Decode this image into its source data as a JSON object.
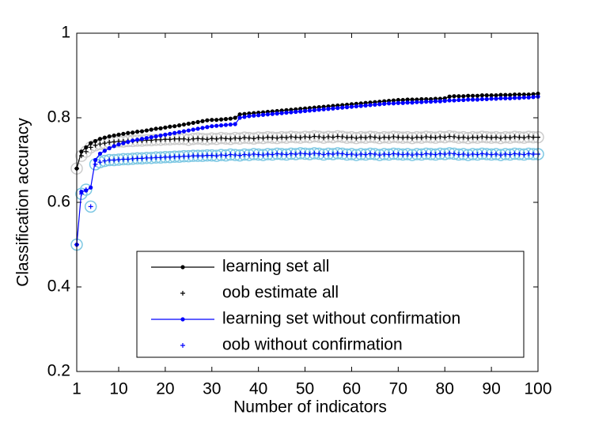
{
  "chart_data": {
    "type": "line",
    "x_label": "Number of indicators",
    "y_label": "Classification accuracy",
    "xlim": [
      1,
      100
    ],
    "xticks": [
      1,
      10,
      20,
      30,
      40,
      50,
      60,
      70,
      80,
      90,
      100
    ],
    "ylim": [
      0.2,
      1
    ],
    "yticks": [
      0.2,
      0.4,
      0.6,
      0.8,
      1
    ],
    "legend": "lower right",
    "x": [
      1,
      2,
      3,
      4,
      5,
      6,
      7,
      8,
      9,
      10,
      11,
      12,
      13,
      14,
      15,
      16,
      17,
      18,
      19,
      20,
      21,
      22,
      23,
      24,
      25,
      26,
      27,
      28,
      29,
      30,
      31,
      32,
      33,
      34,
      35,
      36,
      37,
      38,
      39,
      40,
      41,
      42,
      43,
      44,
      45,
      46,
      47,
      48,
      49,
      50,
      51,
      52,
      53,
      54,
      55,
      56,
      57,
      58,
      59,
      60,
      61,
      62,
      63,
      64,
      65,
      66,
      67,
      68,
      69,
      70,
      71,
      72,
      73,
      74,
      75,
      76,
      77,
      78,
      79,
      80,
      81,
      82,
      83,
      84,
      85,
      86,
      87,
      88,
      89,
      90,
      91,
      92,
      93,
      94,
      95,
      96,
      97,
      98,
      99,
      100
    ],
    "series": [
      {
        "name": "learning set all",
        "color": "#000000",
        "line": true,
        "marker": "dot",
        "values": [
          0.68,
          0.72,
          0.73,
          0.74,
          0.745,
          0.75,
          0.753,
          0.756,
          0.758,
          0.76,
          0.762,
          0.764,
          0.765,
          0.767,
          0.768,
          0.77,
          0.772,
          0.774,
          0.775,
          0.777,
          0.779,
          0.78,
          0.782,
          0.784,
          0.786,
          0.788,
          0.79,
          0.792,
          0.794,
          0.795,
          0.795,
          0.796,
          0.797,
          0.798,
          0.8,
          0.808,
          0.809,
          0.81,
          0.811,
          0.812,
          0.813,
          0.814,
          0.815,
          0.816,
          0.817,
          0.818,
          0.819,
          0.82,
          0.821,
          0.822,
          0.823,
          0.824,
          0.825,
          0.826,
          0.827,
          0.828,
          0.829,
          0.83,
          0.831,
          0.832,
          0.833,
          0.834,
          0.835,
          0.836,
          0.837,
          0.838,
          0.839,
          0.84,
          0.841,
          0.842,
          0.842,
          0.843,
          0.843,
          0.843,
          0.844,
          0.844,
          0.844,
          0.845,
          0.845,
          0.846,
          0.85,
          0.851,
          0.851,
          0.851,
          0.852,
          0.852,
          0.852,
          0.853,
          0.853,
          0.853,
          0.853,
          0.854,
          0.854,
          0.854,
          0.855,
          0.855,
          0.855,
          0.855,
          0.856,
          0.857
        ]
      },
      {
        "name": "oob estimate all",
        "color": "#000000",
        "line": false,
        "marker": "plus",
        "ring": "#cccccc",
        "values": [
          0.68,
          0.71,
          0.72,
          0.73,
          0.735,
          0.738,
          0.74,
          0.742,
          0.743,
          0.744,
          0.744,
          0.745,
          0.745,
          0.746,
          0.746,
          0.747,
          0.747,
          0.748,
          0.748,
          0.749,
          0.749,
          0.75,
          0.75,
          0.75,
          0.748,
          0.75,
          0.751,
          0.75,
          0.749,
          0.751,
          0.75,
          0.752,
          0.751,
          0.75,
          0.752,
          0.751,
          0.753,
          0.752,
          0.751,
          0.753,
          0.752,
          0.754,
          0.753,
          0.752,
          0.754,
          0.753,
          0.755,
          0.754,
          0.753,
          0.755,
          0.754,
          0.756,
          0.755,
          0.753,
          0.755,
          0.754,
          0.756,
          0.755,
          0.753,
          0.754,
          0.752,
          0.754,
          0.753,
          0.755,
          0.754,
          0.752,
          0.754,
          0.753,
          0.755,
          0.754,
          0.753,
          0.754,
          0.752,
          0.754,
          0.753,
          0.755,
          0.754,
          0.753,
          0.755,
          0.754,
          0.756,
          0.755,
          0.753,
          0.754,
          0.752,
          0.754,
          0.753,
          0.755,
          0.754,
          0.753,
          0.754,
          0.752,
          0.754,
          0.753,
          0.755,
          0.754,
          0.753,
          0.755,
          0.754,
          0.754
        ]
      },
      {
        "name": "learning set without confirmation",
        "color": "#0000ff",
        "line": true,
        "marker": "dot",
        "values": [
          0.5,
          0.625,
          0.628,
          0.635,
          0.7,
          0.715,
          0.722,
          0.728,
          0.733,
          0.737,
          0.74,
          0.743,
          0.746,
          0.748,
          0.75,
          0.752,
          0.754,
          0.756,
          0.758,
          0.76,
          0.762,
          0.764,
          0.766,
          0.768,
          0.77,
          0.772,
          0.774,
          0.776,
          0.778,
          0.78,
          0.781,
          0.782,
          0.783,
          0.784,
          0.785,
          0.8,
          0.802,
          0.804,
          0.805,
          0.806,
          0.807,
          0.808,
          0.809,
          0.81,
          0.811,
          0.812,
          0.813,
          0.814,
          0.815,
          0.816,
          0.817,
          0.818,
          0.819,
          0.82,
          0.821,
          0.822,
          0.823,
          0.824,
          0.825,
          0.826,
          0.827,
          0.828,
          0.829,
          0.83,
          0.831,
          0.832,
          0.833,
          0.834,
          0.834,
          0.835,
          0.835,
          0.836,
          0.836,
          0.837,
          0.837,
          0.838,
          0.838,
          0.839,
          0.839,
          0.84,
          0.841,
          0.841,
          0.842,
          0.842,
          0.843,
          0.843,
          0.843,
          0.844,
          0.844,
          0.845,
          0.845,
          0.846,
          0.846,
          0.846,
          0.847,
          0.847,
          0.848,
          0.848,
          0.849,
          0.85
        ]
      },
      {
        "name": "oob without confirmation",
        "color": "#0000ff",
        "line": false,
        "marker": "plus",
        "ring": "#7ec8e3",
        "values": [
          0.5,
          0.62,
          0.63,
          0.59,
          0.69,
          0.695,
          0.698,
          0.7,
          0.7,
          0.701,
          0.702,
          0.702,
          0.703,
          0.704,
          0.704,
          0.705,
          0.705,
          0.706,
          0.706,
          0.707,
          0.707,
          0.708,
          0.708,
          0.709,
          0.709,
          0.71,
          0.71,
          0.71,
          0.711,
          0.711,
          0.71,
          0.712,
          0.711,
          0.713,
          0.712,
          0.711,
          0.713,
          0.712,
          0.714,
          0.713,
          0.712,
          0.714,
          0.713,
          0.715,
          0.714,
          0.713,
          0.715,
          0.714,
          0.716,
          0.715,
          0.714,
          0.716,
          0.715,
          0.713,
          0.715,
          0.714,
          0.716,
          0.715,
          0.713,
          0.714,
          0.712,
          0.714,
          0.713,
          0.715,
          0.714,
          0.712,
          0.714,
          0.713,
          0.715,
          0.714,
          0.713,
          0.714,
          0.712,
          0.714,
          0.713,
          0.715,
          0.714,
          0.713,
          0.715,
          0.714,
          0.716,
          0.715,
          0.713,
          0.714,
          0.712,
          0.714,
          0.713,
          0.715,
          0.714,
          0.713,
          0.714,
          0.712,
          0.714,
          0.713,
          0.715,
          0.714,
          0.713,
          0.715,
          0.714,
          0.714
        ]
      }
    ]
  }
}
